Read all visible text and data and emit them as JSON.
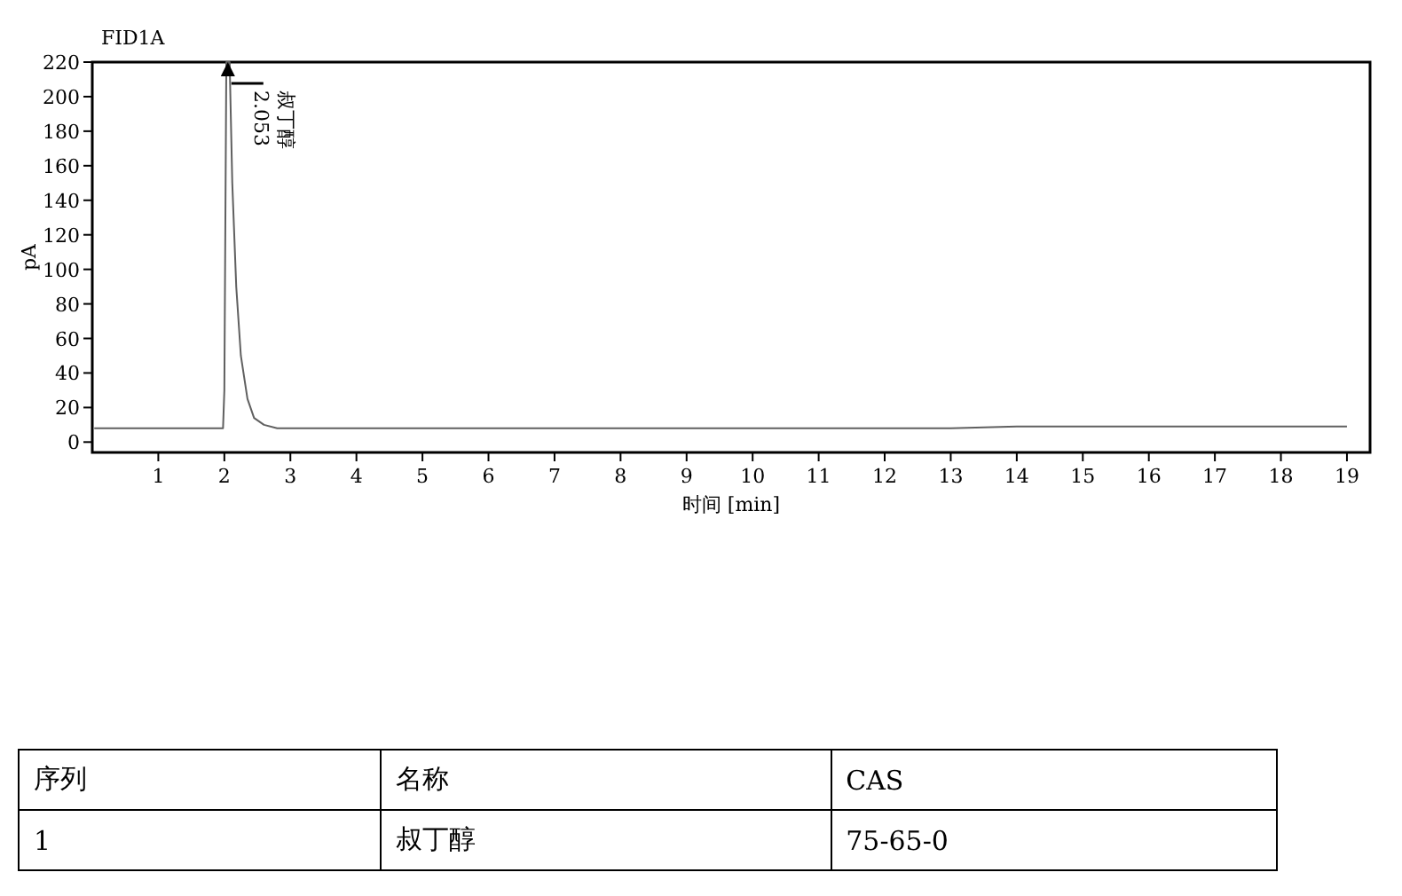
{
  "chart_data": [
    {
      "type": "line",
      "title": "FID1A",
      "xlabel": "时间 [min]",
      "ylabel": "pA",
      "x": [
        0.03,
        1.5,
        1.98,
        2.0,
        2.03,
        2.08,
        2.12,
        2.18,
        2.25,
        2.35,
        2.45,
        2.6,
        2.8,
        3.0,
        6,
        12,
        13,
        14,
        17,
        19
      ],
      "series": [
        {
          "color": "#606060",
          "values": [
            8,
            8,
            8,
            30,
            220,
            220,
            150,
            90,
            50,
            25,
            14,
            10,
            8,
            8,
            8,
            8,
            8,
            9,
            9,
            9
          ]
        }
      ],
      "xlim": [
        0,
        19.35
      ],
      "ylim": [
        -6,
        220
      ],
      "xticks": [
        1,
        2,
        3,
        4,
        5,
        6,
        7,
        8,
        9,
        10,
        11,
        12,
        13,
        14,
        15,
        16,
        17,
        18,
        19
      ],
      "yticks": [
        0,
        20,
        40,
        60,
        80,
        100,
        120,
        140,
        160,
        180,
        200,
        220
      ],
      "grid": false,
      "annotations": [
        {
          "text": "2.053",
          "x": 2.053,
          "y": 220
        },
        {
          "text": "叔丁醇",
          "x": 2.053,
          "y": 220
        }
      ]
    },
    {
      "type": "other",
      "annotations": [
        "序列",
        "名称",
        "CAS",
        "1",
        "叔丁醇",
        "75-65-0"
      ]
    }
  ]
}
